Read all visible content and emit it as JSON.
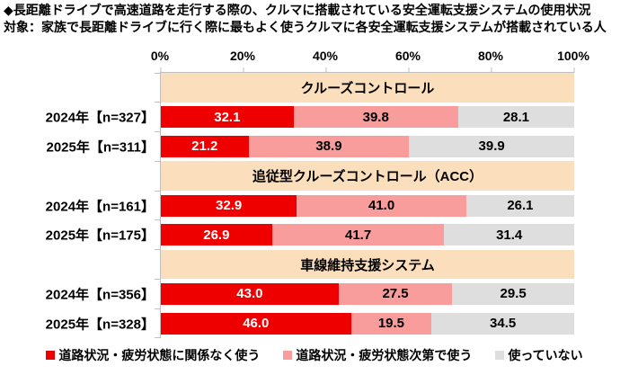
{
  "title": {
    "line1": "◆長距離ドライブで高速道路を走行する際の、クルマに搭載されている安全運転支援システムの使用状況",
    "line2": "対象：家族で長距離ドライブに行く際に最もよく使うクルマに各安全運転支援システムが搭載されている人"
  },
  "colors": {
    "red": "#EE0000",
    "pink": "#F89C9C",
    "gray": "#DEDEDE",
    "header_bg": "#FBDFBD",
    "axis_line": "#BFBFBF"
  },
  "chart_data": {
    "type": "bar",
    "orientation": "horizontal",
    "stacked": true,
    "unit": "%",
    "xlim": [
      0,
      100
    ],
    "x_ticks": [
      "0%",
      "20%",
      "40%",
      "60%",
      "80%",
      "100%"
    ],
    "grid": false,
    "legend_position": "bottom",
    "series_names": [
      "道路状況・疲労状態に関係なく使う",
      "道路状況・疲労状態次第で使う",
      "使っていない"
    ],
    "sections": [
      {
        "header": "クルーズコントロール",
        "rows": [
          {
            "label": "2024年【n=327】",
            "values": [
              32.1,
              39.8,
              28.1
            ],
            "value_labels": [
              "32.1",
              "39.8",
              "28.1"
            ]
          },
          {
            "label": "2025年【n=311】",
            "values": [
              21.2,
              38.9,
              39.9
            ],
            "value_labels": [
              "21.2",
              "38.9",
              "39.9"
            ]
          }
        ]
      },
      {
        "header": "追従型クルーズコントロール（ACC）",
        "rows": [
          {
            "label": "2024年【n=161】",
            "values": [
              32.9,
              41.0,
              26.1
            ],
            "value_labels": [
              "32.9",
              "41.0",
              "26.1"
            ]
          },
          {
            "label": "2025年【n=175】",
            "values": [
              26.9,
              41.7,
              31.4
            ],
            "value_labels": [
              "26.9",
              "41.7",
              "31.4"
            ]
          }
        ]
      },
      {
        "header": "車線維持支援システム",
        "rows": [
          {
            "label": "2024年【n=356】",
            "values": [
              43.0,
              27.5,
              29.5
            ],
            "value_labels": [
              "43.0",
              "27.5",
              "29.5"
            ]
          },
          {
            "label": "2025年【n=328】",
            "values": [
              46.0,
              19.5,
              34.5
            ],
            "value_labels": [
              "46.0",
              "19.5",
              "34.5"
            ]
          }
        ]
      }
    ]
  },
  "legend": {
    "items": [
      {
        "label": "道路状況・疲労状態に関係なく使う",
        "color": "#EE0000"
      },
      {
        "label": "道路状況・疲労状態次第で使う",
        "color": "#F89C9C"
      },
      {
        "label": "使っていない",
        "color": "#DEDEDE"
      }
    ]
  }
}
